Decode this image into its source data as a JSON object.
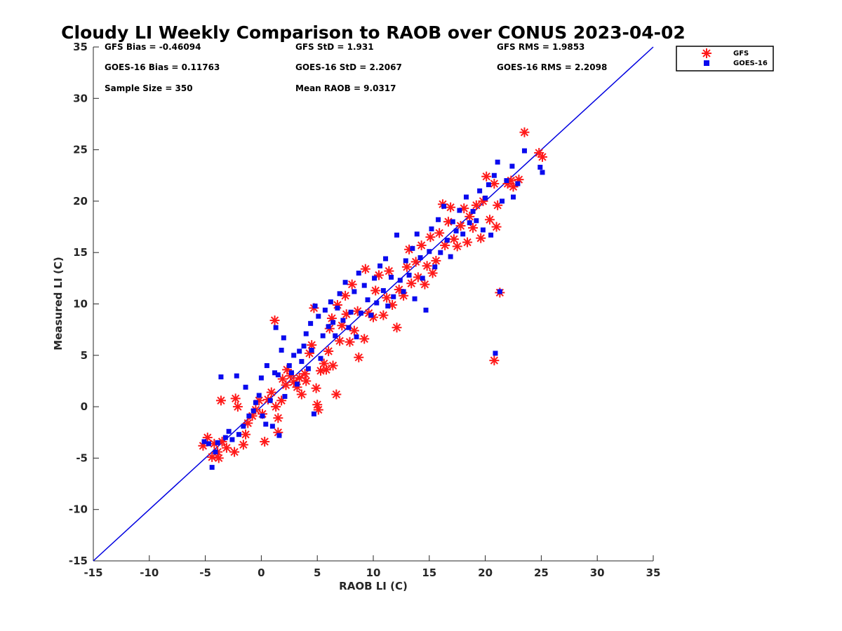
{
  "chart_data": {
    "type": "scatter",
    "title": "Cloudy LI Weekly Comparison to RAOB over CONUS 2023-04-02",
    "xlabel": "RAOB LI (C)",
    "ylabel": "Measured LI (C)",
    "xlim": [
      -15,
      35
    ],
    "ylim": [
      -15,
      35
    ],
    "xticks": [
      -15,
      -10,
      -5,
      0,
      5,
      10,
      15,
      20,
      25,
      30,
      35
    ],
    "yticks": [
      -15,
      -10,
      -5,
      0,
      5,
      10,
      15,
      20,
      25,
      30,
      35
    ],
    "grid": false,
    "legend_position": "top-right outside",
    "reference_line": {
      "x": [
        -15,
        35
      ],
      "y": [
        -15,
        35
      ],
      "color": "#0000e0"
    },
    "stats": [
      {
        "text": "GFS Bias = -0.46094"
      },
      {
        "text": "GFS StD = 1.931"
      },
      {
        "text": "GFS RMS = 1.9853"
      },
      {
        "text": "GOES-16 Bias = 0.11763"
      },
      {
        "text": "GOES-16 StD = 2.2067"
      },
      {
        "text": "GOES-16 RMS = 2.2098"
      },
      {
        "text": "Sample Size = 350"
      },
      {
        "text": "Mean RAOB = 9.0317"
      }
    ],
    "series": [
      {
        "name": "GFS",
        "marker": "asterisk",
        "color": "#ff1a1a",
        "points": [
          [
            -5.2,
            -3.8
          ],
          [
            -4.8,
            -3.0
          ],
          [
            -4.4,
            -4.9
          ],
          [
            -4.2,
            -3.6
          ],
          [
            -3.9,
            -4.4
          ],
          [
            -3.6,
            0.6
          ],
          [
            -3.5,
            -3.4
          ],
          [
            -3.8,
            -5.0
          ],
          [
            -3.1,
            -4.0
          ],
          [
            -2.4,
            -4.4
          ],
          [
            -2.3,
            0.8
          ],
          [
            -2.1,
            0.0
          ],
          [
            -1.6,
            -3.7
          ],
          [
            -1.4,
            -2.7
          ],
          [
            -1.2,
            -1.6
          ],
          [
            -0.8,
            -0.9
          ],
          [
            -0.5,
            -0.3
          ],
          [
            -0.2,
            0.6
          ],
          [
            0.1,
            -0.7
          ],
          [
            0.3,
            -3.4
          ],
          [
            0.6,
            0.7
          ],
          [
            0.9,
            1.4
          ],
          [
            1.2,
            8.4
          ],
          [
            1.3,
            0.0
          ],
          [
            1.5,
            -1.1
          ],
          [
            1.5,
            -2.5
          ],
          [
            1.8,
            0.6
          ],
          [
            1.9,
            2.7
          ],
          [
            2.2,
            2.1
          ],
          [
            2.3,
            3.6
          ],
          [
            2.6,
            3.0
          ],
          [
            2.9,
            2.4
          ],
          [
            3.2,
            1.9
          ],
          [
            3.4,
            2.8
          ],
          [
            3.6,
            1.2
          ],
          [
            3.9,
            3.2
          ],
          [
            4.0,
            2.5
          ],
          [
            4.3,
            5.2
          ],
          [
            4.5,
            6.0
          ],
          [
            4.7,
            9.6
          ],
          [
            4.9,
            1.8
          ],
          [
            5.0,
            0.2
          ],
          [
            5.1,
            -0.3
          ],
          [
            5.3,
            3.5
          ],
          [
            5.6,
            4.2
          ],
          [
            5.8,
            3.6
          ],
          [
            6.0,
            5.4
          ],
          [
            6.1,
            7.6
          ],
          [
            6.3,
            8.6
          ],
          [
            6.4,
            4.0
          ],
          [
            6.7,
            1.2
          ],
          [
            6.8,
            9.9
          ],
          [
            7.0,
            6.4
          ],
          [
            7.2,
            7.9
          ],
          [
            7.5,
            10.8
          ],
          [
            7.6,
            9.0
          ],
          [
            7.9,
            6.3
          ],
          [
            8.1,
            11.9
          ],
          [
            8.3,
            7.4
          ],
          [
            8.6,
            9.3
          ],
          [
            8.7,
            4.8
          ],
          [
            9.2,
            6.6
          ],
          [
            9.3,
            13.4
          ],
          [
            9.6,
            9.1
          ],
          [
            10.0,
            8.7
          ],
          [
            10.2,
            11.3
          ],
          [
            10.5,
            12.8
          ],
          [
            10.9,
            8.9
          ],
          [
            11.2,
            10.6
          ],
          [
            11.4,
            13.2
          ],
          [
            11.7,
            9.9
          ],
          [
            12.1,
            7.7
          ],
          [
            12.3,
            11.4
          ],
          [
            12.7,
            10.8
          ],
          [
            13.0,
            13.6
          ],
          [
            13.2,
            15.3
          ],
          [
            13.4,
            12.0
          ],
          [
            13.8,
            14.1
          ],
          [
            14.0,
            12.6
          ],
          [
            14.3,
            15.7
          ],
          [
            14.6,
            11.9
          ],
          [
            14.8,
            13.7
          ],
          [
            15.1,
            16.5
          ],
          [
            15.3,
            13.0
          ],
          [
            15.6,
            14.2
          ],
          [
            15.9,
            16.9
          ],
          [
            16.2,
            19.7
          ],
          [
            16.4,
            15.7
          ],
          [
            16.7,
            18.0
          ],
          [
            16.9,
            19.4
          ],
          [
            17.2,
            16.3
          ],
          [
            17.5,
            15.6
          ],
          [
            17.8,
            17.6
          ],
          [
            18.1,
            19.3
          ],
          [
            18.4,
            16.0
          ],
          [
            18.6,
            18.5
          ],
          [
            18.9,
            17.4
          ],
          [
            19.2,
            19.6
          ],
          [
            19.6,
            16.4
          ],
          [
            19.8,
            20.0
          ],
          [
            20.1,
            22.4
          ],
          [
            20.4,
            18.2
          ],
          [
            20.8,
            21.7
          ],
          [
            21.0,
            17.5
          ],
          [
            21.1,
            19.6
          ],
          [
            21.3,
            11.1
          ],
          [
            20.8,
            4.5
          ],
          [
            22.0,
            21.7
          ],
          [
            22.3,
            22.0
          ],
          [
            22.5,
            21.4
          ],
          [
            23.0,
            22.1
          ],
          [
            23.5,
            26.7
          ],
          [
            24.8,
            24.7
          ],
          [
            25.1,
            24.3
          ]
        ]
      },
      {
        "name": "GOES-16",
        "marker": "square",
        "color": "#0a0aee",
        "points": [
          [
            -5.1,
            -3.4
          ],
          [
            -4.7,
            -3.6
          ],
          [
            -4.4,
            -5.9
          ],
          [
            -4.1,
            -4.4
          ],
          [
            -3.9,
            -3.5
          ],
          [
            -3.6,
            2.9
          ],
          [
            -3.2,
            -3.0
          ],
          [
            -2.9,
            -2.4
          ],
          [
            -2.6,
            -3.2
          ],
          [
            -2.2,
            3.0
          ],
          [
            -2.0,
            -2.7
          ],
          [
            -1.6,
            -1.9
          ],
          [
            -1.4,
            1.9
          ],
          [
            -1.1,
            -0.9
          ],
          [
            -0.7,
            -0.4
          ],
          [
            -0.5,
            0.4
          ],
          [
            -0.2,
            1.1
          ],
          [
            0.0,
            2.8
          ],
          [
            0.1,
            -0.9
          ],
          [
            0.4,
            -1.7
          ],
          [
            0.5,
            4.0
          ],
          [
            0.8,
            0.6
          ],
          [
            1.0,
            -1.9
          ],
          [
            1.2,
            3.3
          ],
          [
            1.3,
            7.7
          ],
          [
            1.5,
            3.1
          ],
          [
            1.6,
            -2.8
          ],
          [
            1.8,
            5.5
          ],
          [
            2.0,
            6.7
          ],
          [
            2.1,
            1.0
          ],
          [
            2.5,
            4.0
          ],
          [
            2.7,
            3.3
          ],
          [
            2.9,
            5.0
          ],
          [
            3.2,
            2.2
          ],
          [
            3.4,
            5.4
          ],
          [
            3.6,
            4.4
          ],
          [
            3.8,
            5.9
          ],
          [
            4.0,
            7.1
          ],
          [
            4.2,
            3.7
          ],
          [
            4.4,
            8.1
          ],
          [
            4.5,
            5.5
          ],
          [
            4.7,
            -0.7
          ],
          [
            4.8,
            9.8
          ],
          [
            5.1,
            8.8
          ],
          [
            5.3,
            4.7
          ],
          [
            5.5,
            6.9
          ],
          [
            5.7,
            9.4
          ],
          [
            6.0,
            7.8
          ],
          [
            6.2,
            10.2
          ],
          [
            6.4,
            8.2
          ],
          [
            6.6,
            6.9
          ],
          [
            6.8,
            9.6
          ],
          [
            7.0,
            11.0
          ],
          [
            7.3,
            8.4
          ],
          [
            7.5,
            12.1
          ],
          [
            7.8,
            7.7
          ],
          [
            8.0,
            9.2
          ],
          [
            8.3,
            11.2
          ],
          [
            8.5,
            6.8
          ],
          [
            8.7,
            13.0
          ],
          [
            8.9,
            9.1
          ],
          [
            9.2,
            11.8
          ],
          [
            9.5,
            10.4
          ],
          [
            9.8,
            8.9
          ],
          [
            10.1,
            12.5
          ],
          [
            10.3,
            10.1
          ],
          [
            10.6,
            13.7
          ],
          [
            10.9,
            11.3
          ],
          [
            11.1,
            14.4
          ],
          [
            11.3,
            9.8
          ],
          [
            11.6,
            12.6
          ],
          [
            11.8,
            10.7
          ],
          [
            12.1,
            16.7
          ],
          [
            12.4,
            12.3
          ],
          [
            12.7,
            11.2
          ],
          [
            12.9,
            14.2
          ],
          [
            13.2,
            12.8
          ],
          [
            13.5,
            15.4
          ],
          [
            13.7,
            10.5
          ],
          [
            13.9,
            16.8
          ],
          [
            14.2,
            14.5
          ],
          [
            14.4,
            12.5
          ],
          [
            14.7,
            9.4
          ],
          [
            15.0,
            15.1
          ],
          [
            15.2,
            17.3
          ],
          [
            15.5,
            13.6
          ],
          [
            15.8,
            18.2
          ],
          [
            16.0,
            15.0
          ],
          [
            16.3,
            19.5
          ],
          [
            16.6,
            16.2
          ],
          [
            16.9,
            14.6
          ],
          [
            17.1,
            18.0
          ],
          [
            17.4,
            17.1
          ],
          [
            17.7,
            19.1
          ],
          [
            18.0,
            16.8
          ],
          [
            18.3,
            20.4
          ],
          [
            18.6,
            17.9
          ],
          [
            18.9,
            19.0
          ],
          [
            19.2,
            18.1
          ],
          [
            19.5,
            21.0
          ],
          [
            19.8,
            17.2
          ],
          [
            20.0,
            20.3
          ],
          [
            20.3,
            21.6
          ],
          [
            20.5,
            16.7
          ],
          [
            20.8,
            22.5
          ],
          [
            20.9,
            5.2
          ],
          [
            21.1,
            23.8
          ],
          [
            21.3,
            11.2
          ],
          [
            21.5,
            20.0
          ],
          [
            21.9,
            22.0
          ],
          [
            22.4,
            23.4
          ],
          [
            22.5,
            20.4
          ],
          [
            22.9,
            21.7
          ],
          [
            23.5,
            24.9
          ],
          [
            24.9,
            23.3
          ],
          [
            25.1,
            22.8
          ]
        ]
      }
    ]
  }
}
